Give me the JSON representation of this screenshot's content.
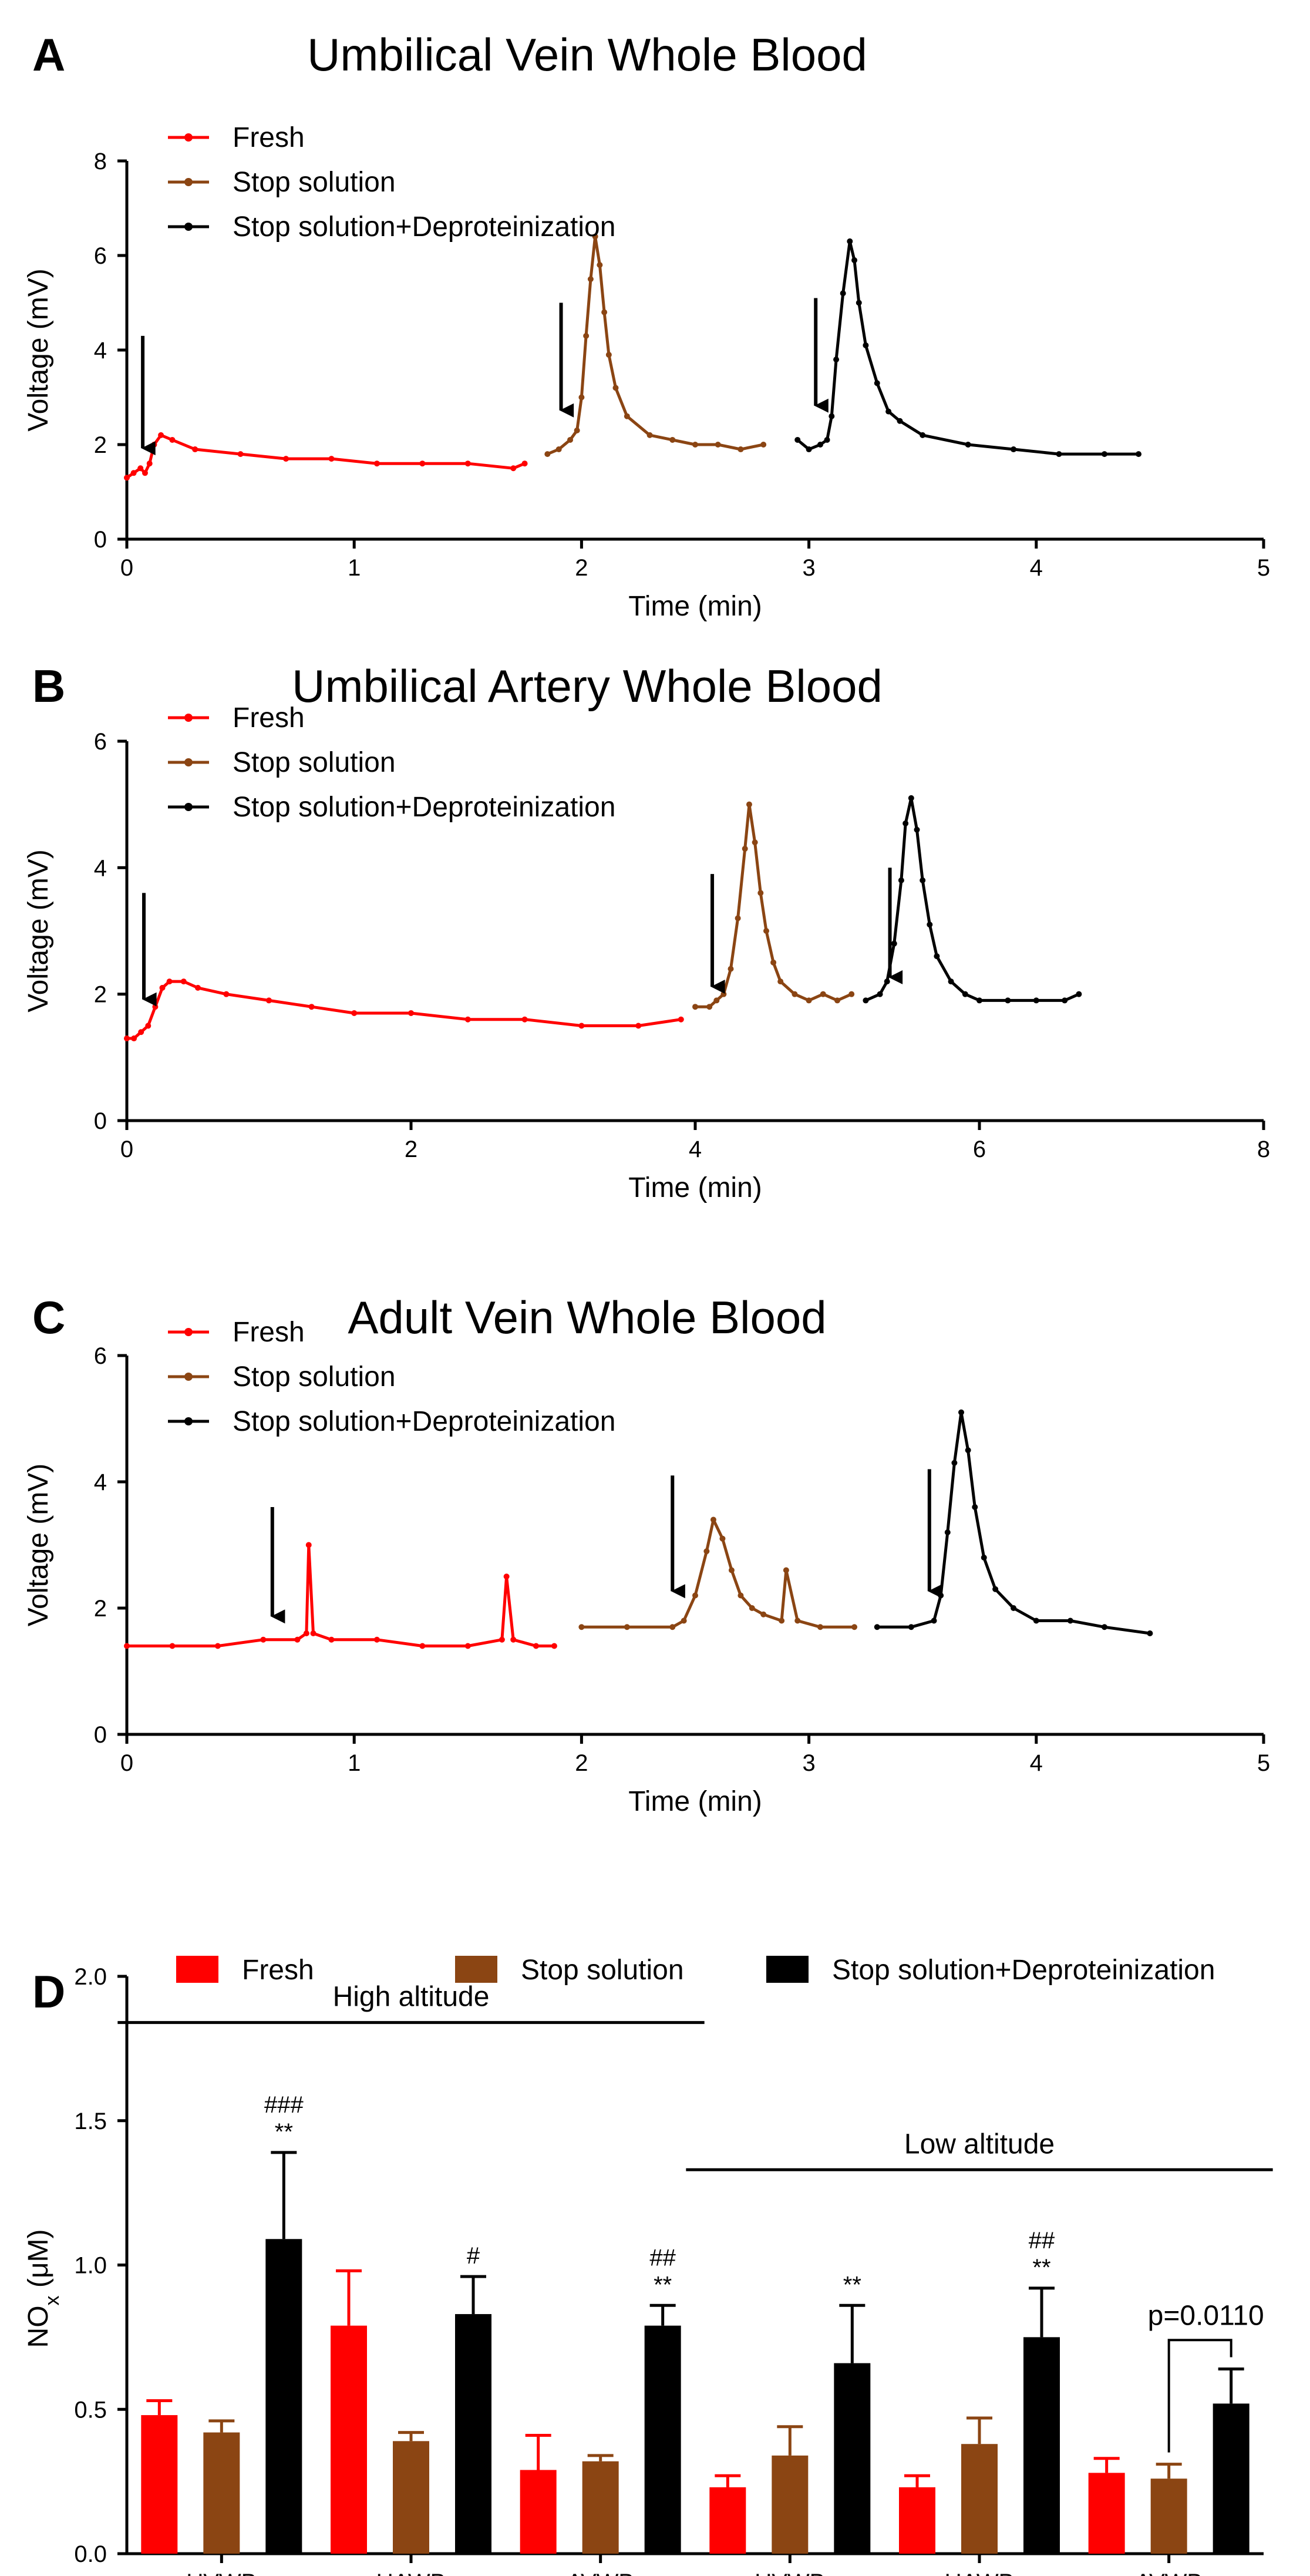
{
  "colors": {
    "fresh": "#ff0000",
    "stop_solution": "#8b4513",
    "deproteinization": "#000000"
  },
  "chart_data": [
    {
      "panel": "A",
      "type": "line",
      "title": "Umbilical Vein Whole Blood",
      "xlabel": "Time (min)",
      "ylabel": "Voltage (mV)",
      "xlim": [
        0,
        5
      ],
      "ylim": [
        0,
        8
      ],
      "xticks": [
        "0",
        "1",
        "2",
        "3",
        "4",
        "5"
      ],
      "yticks": [
        "0",
        "2",
        "4",
        "6",
        "8"
      ],
      "legend": [
        "Fresh",
        "Stop solution",
        "Stop solution+Deproteinization"
      ],
      "legend_position": "top-left",
      "series": [
        {
          "name": "Fresh",
          "color": "#ff0000",
          "x": [
            0.0,
            0.03,
            0.06,
            0.08,
            0.1,
            0.12,
            0.15,
            0.2,
            0.3,
            0.5,
            0.7,
            0.9,
            1.1,
            1.3,
            1.5,
            1.7,
            1.75
          ],
          "y": [
            1.3,
            1.4,
            1.5,
            1.4,
            1.6,
            2.0,
            2.2,
            2.1,
            1.9,
            1.8,
            1.7,
            1.7,
            1.6,
            1.6,
            1.6,
            1.5,
            1.6
          ]
        },
        {
          "name": "Stop solution",
          "color": "#8b4513",
          "x": [
            1.85,
            1.9,
            1.95,
            1.98,
            2.0,
            2.02,
            2.04,
            2.06,
            2.08,
            2.1,
            2.12,
            2.15,
            2.2,
            2.3,
            2.4,
            2.5,
            2.6,
            2.7,
            2.8
          ],
          "y": [
            1.8,
            1.9,
            2.1,
            2.3,
            3.0,
            4.3,
            5.5,
            6.4,
            5.8,
            4.8,
            3.9,
            3.2,
            2.6,
            2.2,
            2.1,
            2.0,
            2.0,
            1.9,
            2.0
          ]
        },
        {
          "name": "Stop solution+Deproteinization",
          "color": "#000000",
          "x": [
            2.95,
            3.0,
            3.05,
            3.08,
            3.1,
            3.12,
            3.15,
            3.18,
            3.2,
            3.22,
            3.25,
            3.3,
            3.35,
            3.4,
            3.5,
            3.7,
            3.9,
            4.1,
            4.3,
            4.45
          ],
          "y": [
            2.1,
            1.9,
            2.0,
            2.1,
            2.6,
            3.8,
            5.2,
            6.3,
            5.9,
            5.0,
            4.1,
            3.3,
            2.7,
            2.5,
            2.2,
            2.0,
            1.9,
            1.8,
            1.8,
            1.8
          ]
        }
      ],
      "arrows": [
        {
          "x": 0.07,
          "y_tip": 1.7,
          "y_tail": 4.3
        },
        {
          "x": 1.91,
          "y_tip": 2.5,
          "y_tail": 5.0
        },
        {
          "x": 3.03,
          "y_tip": 2.6,
          "y_tail": 5.1
        }
      ]
    },
    {
      "panel": "B",
      "type": "line",
      "title": "Umbilical Artery Whole Blood",
      "xlabel": "Time (min)",
      "ylabel": "Voltage (mV)",
      "xlim": [
        0,
        8
      ],
      "ylim": [
        0,
        6
      ],
      "xticks": [
        "0",
        "2",
        "4",
        "6",
        "8"
      ],
      "yticks": [
        "0",
        "2",
        "4",
        "6"
      ],
      "legend": [
        "Fresh",
        "Stop solution",
        "Stop solution+Deproteinization"
      ],
      "legend_position": "top-left",
      "series": [
        {
          "name": "Fresh",
          "color": "#ff0000",
          "x": [
            0.0,
            0.05,
            0.1,
            0.15,
            0.2,
            0.25,
            0.3,
            0.4,
            0.5,
            0.7,
            1.0,
            1.3,
            1.6,
            2.0,
            2.4,
            2.8,
            3.2,
            3.6,
            3.9
          ],
          "y": [
            1.3,
            1.3,
            1.4,
            1.5,
            1.8,
            2.1,
            2.2,
            2.2,
            2.1,
            2.0,
            1.9,
            1.8,
            1.7,
            1.7,
            1.6,
            1.6,
            1.5,
            1.5,
            1.6
          ]
        },
        {
          "name": "Stop solution",
          "color": "#8b4513",
          "x": [
            4.0,
            4.1,
            4.15,
            4.2,
            4.25,
            4.3,
            4.35,
            4.38,
            4.42,
            4.46,
            4.5,
            4.55,
            4.6,
            4.7,
            4.8,
            4.9,
            5.0,
            5.1
          ],
          "y": [
            1.8,
            1.8,
            1.9,
            2.0,
            2.4,
            3.2,
            4.3,
            5.0,
            4.4,
            3.6,
            3.0,
            2.5,
            2.2,
            2.0,
            1.9,
            2.0,
            1.9,
            2.0
          ]
        },
        {
          "name": "Stop solution+Deproteinization",
          "color": "#000000",
          "x": [
            5.2,
            5.3,
            5.35,
            5.4,
            5.45,
            5.48,
            5.52,
            5.56,
            5.6,
            5.65,
            5.7,
            5.8,
            5.9,
            6.0,
            6.2,
            6.4,
            6.6,
            6.7
          ],
          "y": [
            1.9,
            2.0,
            2.2,
            2.8,
            3.8,
            4.7,
            5.1,
            4.6,
            3.8,
            3.1,
            2.6,
            2.2,
            2.0,
            1.9,
            1.9,
            1.9,
            1.9,
            2.0
          ]
        }
      ],
      "arrows": [
        {
          "x": 0.12,
          "y_tip": 1.75,
          "y_tail": 3.6
        },
        {
          "x": 4.12,
          "y_tip": 1.95,
          "y_tail": 3.9
        },
        {
          "x": 5.37,
          "y_tip": 2.1,
          "y_tail": 4.0
        }
      ]
    },
    {
      "panel": "C",
      "type": "line",
      "title": "Adult Vein Whole Blood",
      "xlabel": "Time (min)",
      "ylabel": "Voltage (mV)",
      "xlim": [
        0,
        5
      ],
      "ylim": [
        0,
        6
      ],
      "xticks": [
        "0",
        "1",
        "2",
        "3",
        "4",
        "5"
      ],
      "yticks": [
        "0",
        "2",
        "4",
        "6"
      ],
      "legend": [
        "Fresh",
        "Stop solution",
        "Stop solution+Deproteinization"
      ],
      "legend_position": "top-left",
      "series": [
        {
          "name": "Fresh",
          "color": "#ff0000",
          "x": [
            0.0,
            0.2,
            0.4,
            0.6,
            0.75,
            0.79,
            0.8,
            0.82,
            0.9,
            1.1,
            1.3,
            1.5,
            1.65,
            1.67,
            1.7,
            1.8,
            1.88
          ],
          "y": [
            1.4,
            1.4,
            1.4,
            1.5,
            1.5,
            1.6,
            3.0,
            1.6,
            1.5,
            1.5,
            1.4,
            1.4,
            1.5,
            2.5,
            1.5,
            1.4,
            1.4
          ]
        },
        {
          "name": "Stop solution",
          "color": "#8b4513",
          "x": [
            2.0,
            2.2,
            2.4,
            2.45,
            2.5,
            2.55,
            2.58,
            2.62,
            2.66,
            2.7,
            2.75,
            2.8,
            2.88,
            2.9,
            2.95,
            3.05,
            3.2
          ],
          "y": [
            1.7,
            1.7,
            1.7,
            1.8,
            2.2,
            2.9,
            3.4,
            3.1,
            2.6,
            2.2,
            2.0,
            1.9,
            1.8,
            2.6,
            1.8,
            1.7,
            1.7
          ]
        },
        {
          "name": "Stop solution+Deproteinization",
          "color": "#000000",
          "x": [
            3.3,
            3.45,
            3.55,
            3.58,
            3.61,
            3.64,
            3.67,
            3.7,
            3.73,
            3.77,
            3.82,
            3.9,
            4.0,
            4.15,
            4.3,
            4.5
          ],
          "y": [
            1.7,
            1.7,
            1.8,
            2.2,
            3.2,
            4.3,
            5.1,
            4.5,
            3.6,
            2.8,
            2.3,
            2.0,
            1.8,
            1.8,
            1.7,
            1.6
          ]
        }
      ],
      "arrows": [
        {
          "x": 0.64,
          "y_tip": 1.7,
          "y_tail": 3.6
        },
        {
          "x": 2.4,
          "y_tip": 2.1,
          "y_tail": 4.1
        },
        {
          "x": 3.53,
          "y_tip": 2.1,
          "y_tail": 4.2
        }
      ]
    },
    {
      "panel": "D",
      "type": "bar",
      "ylabel_main": "NO",
      "ylabel_sub": "x",
      "ylabel_unit": "(μM)",
      "ylim": [
        0,
        2.0
      ],
      "yticks": [
        "0.0",
        "0.5",
        "1.0",
        "1.5",
        "2.0"
      ],
      "categories": [
        "UVWB",
        "UAWB",
        "AVWB",
        "UVWB",
        "UAWB",
        "AVWB"
      ],
      "legend_position": "top",
      "series": [
        {
          "name": "Fresh",
          "color": "#ff0000",
          "values": [
            0.48,
            0.79,
            0.29,
            0.23,
            0.23,
            0.28
          ],
          "errors": [
            0.05,
            0.19,
            0.12,
            0.04,
            0.04,
            0.05
          ]
        },
        {
          "name": "Stop solution",
          "color": "#8b4513",
          "values": [
            0.42,
            0.39,
            0.32,
            0.34,
            0.38,
            0.26
          ],
          "errors": [
            0.04,
            0.03,
            0.02,
            0.1,
            0.09,
            0.05
          ]
        },
        {
          "name": "Stop solution+Deproteinization",
          "color": "#000000",
          "values": [
            1.09,
            0.83,
            0.79,
            0.66,
            0.75,
            0.52
          ],
          "errors": [
            0.3,
            0.13,
            0.07,
            0.2,
            0.17,
            0.12
          ]
        }
      ],
      "group_labels": [
        {
          "text": "High altitude",
          "from_category": 0,
          "to_category": 2,
          "y": 1.84
        },
        {
          "text": "Low altitude",
          "from_category": 3,
          "to_category": 5,
          "y": 1.33
        }
      ],
      "annotations": [
        {
          "category": 0,
          "lines": [
            "###",
            "**"
          ]
        },
        {
          "category": 1,
          "lines": [
            "#"
          ]
        },
        {
          "category": 2,
          "lines": [
            "##",
            "**"
          ]
        },
        {
          "category": 3,
          "lines": [
            "**"
          ]
        },
        {
          "category": 4,
          "lines": [
            "##",
            "**"
          ]
        }
      ],
      "comparison": {
        "text": "p=0.0110",
        "category": 5,
        "from_series": 1,
        "to_series": 2,
        "y": 0.74
      }
    }
  ]
}
